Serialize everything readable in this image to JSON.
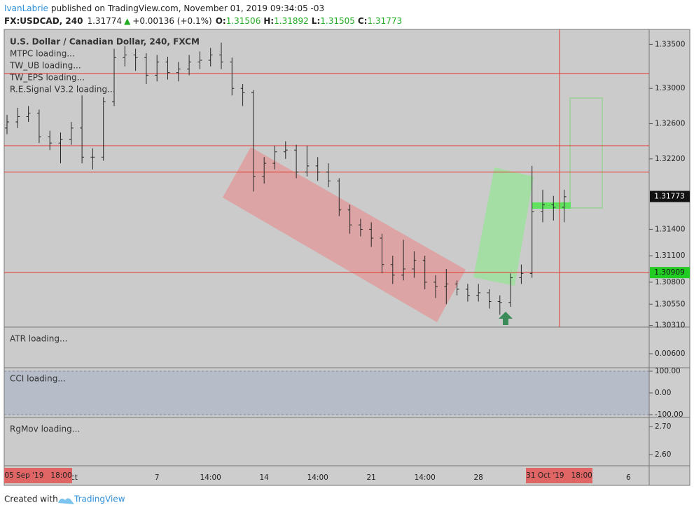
{
  "header": {
    "author": "IvanLabrie",
    "published": "published on TradingView.com, November 01, 2019 09:34:05 -03",
    "symbol": "FX:USDCAD, 240",
    "last": "1.31774",
    "change": "+0.00136 (+0.1%)",
    "ohlc": [
      {
        "key": "O:",
        "value": "1.31506"
      },
      {
        "key": "H:",
        "value": "1.31892"
      },
      {
        "key": "L:",
        "value": "1.31505"
      },
      {
        "key": "C:",
        "value": "1.31773"
      }
    ]
  },
  "chart_data": {
    "type": "ohlc",
    "title": "U.S. Dollar / Canadian Dollar, 240, FXCM",
    "indicators": [
      "MTPC loading...",
      "TW_UB loading...",
      "TW_EPS loading...",
      "R.E.Signal V3.2 loading..."
    ],
    "categories": [
      null,
      null,
      null,
      null,
      null,
      null,
      "Oct",
      null,
      null,
      null,
      null,
      null,
      null,
      null,
      "7",
      null,
      null,
      null,
      null,
      "14:00",
      null,
      null,
      null,
      null,
      "14",
      null,
      null,
      null,
      null,
      "14:00",
      null,
      null,
      null,
      null,
      "21",
      null,
      null,
      null,
      null,
      "14:00",
      null,
      null,
      null,
      null,
      "28",
      null,
      null,
      null,
      null,
      null,
      null,
      null,
      null,
      null,
      null,
      null,
      null,
      null,
      "6",
      null
    ],
    "open": [
      1.3255,
      1.3262,
      1.3268,
      1.3272,
      1.3245,
      1.3238,
      1.3242,
      1.3255,
      1.3222,
      1.3222,
      1.3285,
      1.3335,
      1.3338,
      1.3335,
      1.3315,
      1.333,
      1.3318,
      1.3322,
      1.333,
      1.3332,
      1.3338,
      1.333,
      1.33,
      1.3295,
      1.32,
      1.3215,
      1.3228,
      1.323,
      1.3205,
      1.3212,
      1.3205,
      1.3195,
      1.3162,
      1.3145,
      1.314,
      1.313,
      1.31,
      1.3088,
      1.3095,
      1.3105,
      1.308,
      1.3075,
      1.3078,
      1.3072,
      1.3065,
      1.3068,
      1.3058,
      1.3057,
      1.3085,
      1.309,
      1.316,
      1.3168,
      1.3165,
      null,
      null,
      null,
      null,
      null,
      null,
      null
    ],
    "high": [
      1.327,
      1.3278,
      1.328,
      1.3276,
      1.3252,
      1.325,
      1.3262,
      1.3292,
      1.3232,
      1.329,
      1.3345,
      1.3348,
      1.3345,
      1.334,
      1.3338,
      1.3336,
      1.333,
      1.3338,
      1.3342,
      1.3346,
      1.3352,
      1.3335,
      1.3305,
      1.3298,
      1.3222,
      1.3235,
      1.324,
      1.3236,
      1.3235,
      1.3222,
      1.3215,
      1.3198,
      1.3168,
      1.3152,
      1.3148,
      1.3135,
      1.311,
      1.3128,
      1.3115,
      1.311,
      1.3088,
      1.3095,
      1.3082,
      1.3078,
      1.3078,
      1.3072,
      1.3065,
      1.309,
      1.31,
      1.3212,
      1.3185,
      1.3178,
      1.3185,
      null,
      null,
      null,
      null,
      null,
      null,
      null
    ],
    "low": [
      1.3248,
      1.3255,
      1.3262,
      1.3238,
      1.323,
      1.3215,
      1.3236,
      1.3215,
      1.3208,
      1.3218,
      1.328,
      1.3325,
      1.332,
      1.3305,
      1.3308,
      1.331,
      1.3308,
      1.3315,
      1.3322,
      1.3325,
      1.3322,
      1.3292,
      1.328,
      1.3183,
      1.3192,
      1.3208,
      1.322,
      1.3198,
      1.32,
      1.3195,
      1.3188,
      1.3155,
      1.3135,
      1.3132,
      1.312,
      1.309,
      1.3078,
      1.3082,
      1.3085,
      1.3072,
      1.3062,
      1.3055,
      1.3065,
      1.3058,
      1.3058,
      1.305,
      1.3043,
      1.3052,
      1.3078,
      1.3085,
      1.3148,
      1.315,
      1.3148,
      null,
      null,
      null,
      null,
      null,
      null,
      null
    ],
    "close": [
      1.3262,
      1.3268,
      1.3272,
      1.3245,
      1.3238,
      1.3242,
      1.3255,
      1.3222,
      1.3222,
      1.3285,
      1.3335,
      1.3338,
      1.3335,
      1.3315,
      1.333,
      1.3318,
      1.3322,
      1.333,
      1.3332,
      1.3338,
      1.333,
      1.33,
      1.3295,
      1.32,
      1.3215,
      1.3228,
      1.323,
      1.3205,
      1.3212,
      1.3205,
      1.3195,
      1.3162,
      1.3145,
      1.314,
      1.313,
      1.31,
      1.3088,
      1.3095,
      1.3105,
      1.308,
      1.3075,
      1.3078,
      1.3072,
      1.3065,
      1.3068,
      1.3058,
      1.3057,
      1.3085,
      1.309,
      1.316,
      1.3168,
      1.3165,
      1.3177,
      null,
      null,
      null,
      null,
      null,
      null,
      null
    ],
    "color": "#262626",
    "ylim": [
      1.3029,
      1.3367
    ],
    "yticks": [
      {
        "value": 1.335,
        "label": "1.33500"
      },
      {
        "value": 1.33,
        "label": "1.33000"
      },
      {
        "value": 1.326,
        "label": "1.32600"
      },
      {
        "value": 1.322,
        "label": "1.32200"
      },
      {
        "value": 1.314,
        "label": "1.31400"
      },
      {
        "value": 1.311,
        "label": "1.31100"
      },
      {
        "value": 1.308,
        "label": "1.30800"
      },
      {
        "value": 1.3055,
        "label": "1.30550"
      },
      {
        "value": 1.3031,
        "label": "1.30310"
      }
    ],
    "levels": [
      1.3317,
      1.3235,
      1.3205,
      1.30909
    ],
    "level_color": "#e53935",
    "last_price": 1.31773,
    "marked_price": 1.30909,
    "time_markers": [
      "05 Sep '19   18:00",
      "31 Oct '19   18:00"
    ]
  },
  "panes": [
    {
      "title": "ATR loading...",
      "ticks": [
        "0.00600"
      ]
    },
    {
      "title": "CCI loading...",
      "ticks": [
        "100.00",
        "0.00",
        "-100.00"
      ]
    },
    {
      "title": "RgMov loading...",
      "ticks": [
        "2.70",
        "2.60"
      ]
    }
  ],
  "footer": {
    "prefix": "Created with",
    "brand": "TradingView"
  }
}
